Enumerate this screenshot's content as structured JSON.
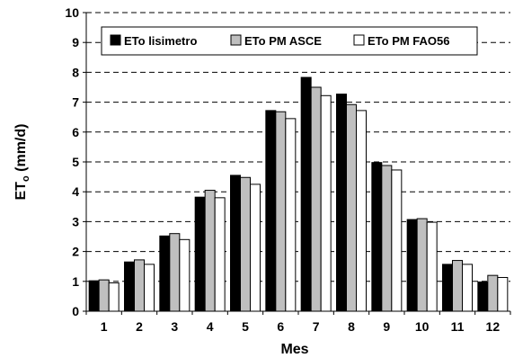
{
  "chart_data": {
    "type": "bar",
    "title": "",
    "xlabel": "Mes",
    "ylabel": "ET",
    "ylabel_subscript": "o",
    "ylabel_unit": " (mm/d)",
    "categories": [
      "1",
      "2",
      "3",
      "4",
      "5",
      "6",
      "7",
      "8",
      "9",
      "10",
      "11",
      "12"
    ],
    "series": [
      {
        "name": "ETo lisimetro",
        "color": "#000000",
        "values": [
          1.02,
          1.65,
          2.52,
          3.82,
          4.55,
          6.72,
          7.83,
          7.27,
          4.98,
          3.07,
          1.57,
          0.98
        ]
      },
      {
        "name": "ETo PM ASCE",
        "color": "#bfbfbf",
        "values": [
          1.05,
          1.72,
          2.6,
          4.05,
          4.48,
          6.68,
          7.5,
          6.92,
          4.88,
          3.1,
          1.7,
          1.2
        ]
      },
      {
        "name": "ETo PM FAO56",
        "color": "#ffffff",
        "values": [
          0.95,
          1.57,
          2.4,
          3.8,
          4.25,
          6.45,
          7.22,
          6.72,
          4.73,
          2.98,
          1.57,
          1.13
        ]
      }
    ],
    "ylim": [
      0,
      10
    ],
    "yticks": [
      "0",
      "1",
      "2",
      "3",
      "4",
      "5",
      "6",
      "7",
      "8",
      "9",
      "10"
    ],
    "grid": "horizontal dashed",
    "legend_position": "top"
  }
}
